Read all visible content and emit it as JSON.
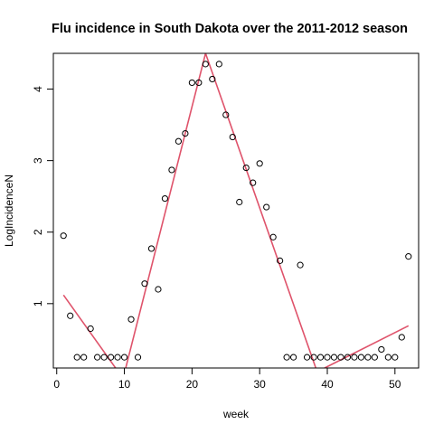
{
  "chart_data": {
    "type": "scatter",
    "title": "Flu incidence in South Dakota over the 2011-2012 season",
    "xlabel": "week",
    "ylabel": "LogIncidenceN",
    "xlim": [
      -0.5,
      53.5
    ],
    "ylim": [
      0.1,
      4.5
    ],
    "xticks": [
      0,
      10,
      20,
      30,
      40,
      50
    ],
    "yticks": [
      1,
      2,
      3,
      4
    ],
    "grid": false,
    "legend": "none",
    "series": [
      {
        "kind": "points",
        "marker": "open-circle",
        "color": "#000000",
        "x": [
          1,
          2,
          3,
          4,
          5,
          6,
          7,
          8,
          9,
          10,
          11,
          12,
          13,
          14,
          15,
          16,
          17,
          18,
          19,
          20,
          21,
          22,
          23,
          24,
          25,
          26,
          27,
          28,
          29,
          30,
          31,
          32,
          33,
          34,
          35,
          36,
          37,
          38,
          39,
          40,
          41,
          42,
          43,
          44,
          45,
          46,
          47,
          48,
          49,
          50,
          51,
          52
        ],
        "y": [
          1.95,
          0.83,
          0.25,
          0.25,
          0.65,
          0.25,
          0.25,
          0.25,
          0.25,
          0.25,
          0.78,
          0.25,
          1.28,
          1.77,
          1.2,
          2.47,
          2.87,
          3.27,
          3.38,
          4.09,
          4.09,
          4.35,
          4.14,
          4.35,
          3.64,
          3.33,
          2.42,
          2.9,
          2.69,
          2.96,
          2.35,
          1.93,
          1.6,
          0.25,
          0.25,
          1.54,
          0.25,
          0.25,
          0.25,
          0.25,
          0.25,
          0.25,
          0.25,
          0.25,
          0.25,
          0.25,
          0.25,
          0.36,
          0.25,
          0.25,
          0.53,
          1.66
        ]
      },
      {
        "kind": "piecewise-line",
        "color": "#DF536B",
        "segments": [
          [
            [
              1,
              1.12
            ],
            [
              8.7,
              0.1
            ]
          ],
          [
            [
              10.2,
              0.1
            ],
            [
              22,
              4.5
            ],
            [
              38.3,
              0.1
            ]
          ],
          [
            [
              39.6,
              0.1
            ],
            [
              52,
              0.69
            ]
          ]
        ]
      }
    ]
  }
}
